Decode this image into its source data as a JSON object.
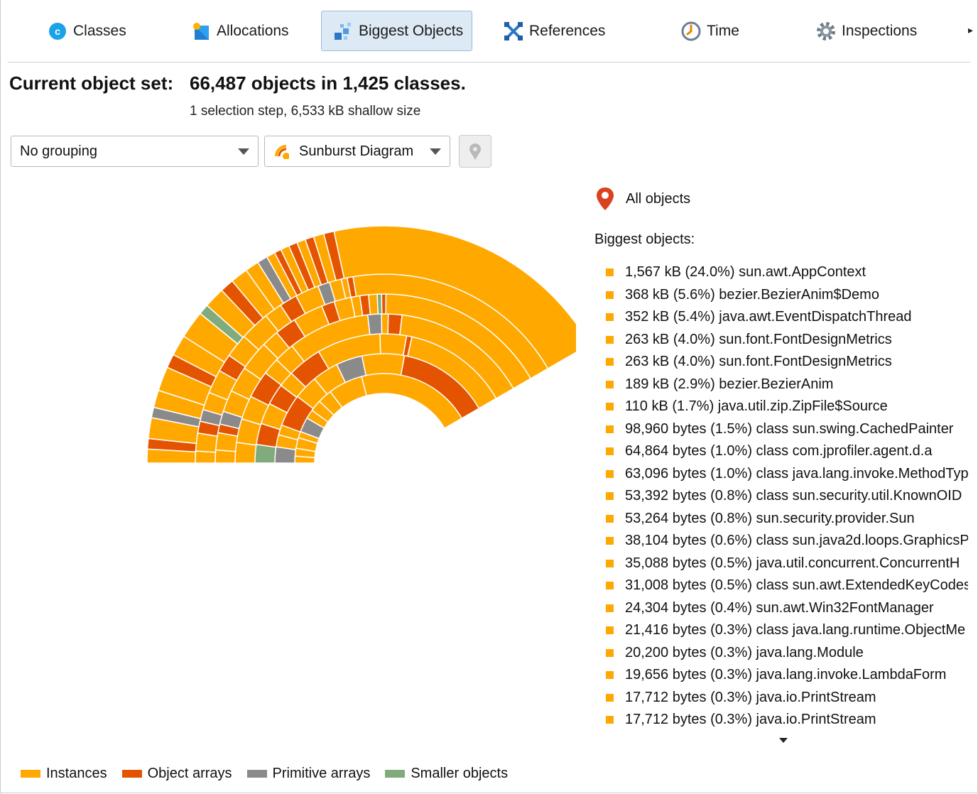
{
  "tabs": [
    {
      "label": "Classes",
      "icon": "classes-icon"
    },
    {
      "label": "Allocations",
      "icon": "allocations-icon"
    },
    {
      "label": "Biggest Objects",
      "icon": "biggest-objects-icon",
      "active": true
    },
    {
      "label": "References",
      "icon": "references-icon"
    },
    {
      "label": "Time",
      "icon": "time-icon"
    },
    {
      "label": "Inspections",
      "icon": "inspections-icon"
    }
  ],
  "header": {
    "label": "Current object set:",
    "value": "66,487 objects in 1,425 classes.",
    "sub": "1 selection step, 6,533 kB shallow size"
  },
  "controls": {
    "grouping": "No grouping",
    "view": "Sunburst Diagram"
  },
  "panel": {
    "all_objects": "All objects",
    "biggest_title": "Biggest objects:",
    "items": [
      "1,567 kB (24.0%) sun.awt.AppContext",
      "368 kB (5.6%) bezier.BezierAnim$Demo",
      "352 kB (5.4%) java.awt.EventDispatchThread",
      "263 kB (4.0%) sun.font.FontDesignMetrics",
      "263 kB (4.0%) sun.font.FontDesignMetrics",
      "189 kB (2.9%) bezier.BezierAnim",
      "110 kB (1.7%) java.util.zip.ZipFile$Source",
      "98,960 bytes (1.5%) class sun.swing.CachedPainter",
      "64,864 bytes (1.0%) class com.jprofiler.agent.d.a",
      "63,096 bytes (1.0%) class java.lang.invoke.MethodTyp",
      "53,392 bytes (0.8%) class sun.security.util.KnownOID",
      "53,264 bytes (0.8%) sun.security.provider.Sun",
      "38,104 bytes (0.6%) class sun.java2d.loops.GraphicsP",
      "35,088 bytes (0.5%) java.util.concurrent.ConcurrentH",
      "31,008 bytes (0.5%) class sun.awt.ExtendedKeyCodes",
      "24,304 bytes (0.4%) sun.awt.Win32FontManager",
      "21,416 bytes (0.3%) class java.lang.runtime.ObjectMe",
      "20,200 bytes (0.3%) java.lang.Module",
      "19,656 bytes (0.3%) java.lang.invoke.LambdaForm",
      "17,712 bytes (0.3%) java.io.PrintStream",
      "17,712 bytes (0.3%) java.io.PrintStream"
    ]
  },
  "legend": [
    {
      "label": "Instances",
      "color": "#ffa800"
    },
    {
      "label": "Object arrays",
      "color": "#e45400"
    },
    {
      "label": "Primitive arrays",
      "color": "#8a8a8a"
    },
    {
      "label": "Smaller objects",
      "color": "#7fab7d"
    }
  ],
  "colors": {
    "instances": "#ffa800",
    "object_arrays": "#e45400",
    "primitive_arrays": "#8a8a8a",
    "smaller_objects": "#7fab7d",
    "active_tab_bg": "#dde9f5",
    "marker": "#d9431e"
  },
  "sunburst": {
    "rings": [
      [
        [
          "i",
          100.0
        ]
      ],
      [
        [
          "i",
          1.5
        ],
        [
          "i",
          1.7
        ],
        [
          "i",
          2.3
        ],
        [
          "i",
          1.4
        ],
        [
          "p",
          3.2
        ],
        [
          "i",
          2.0
        ],
        [
          "i",
          2.5
        ],
        [
          "i",
          3.1
        ],
        [
          "i",
          7.5
        ],
        [
          "i",
          25.0
        ]
      ],
      [
        [
          "p",
          4.0
        ],
        [
          "i",
          3.0
        ],
        [
          "i",
          2.5
        ],
        [
          "o",
          8.0
        ],
        [
          "i",
          6.0
        ],
        [
          "i",
          6.5
        ],
        [
          "p",
          6.5
        ],
        [
          "i",
          10.5
        ],
        [
          "o",
          23.0
        ]
      ],
      [
        [
          "g",
          3.5
        ],
        [
          "o",
          4.0
        ],
        [
          "i",
          4.0
        ],
        [
          "o",
          4.0
        ],
        [
          "i",
          3.0
        ],
        [
          "o",
          6.5
        ],
        [
          "i",
          12.0
        ],
        [
          "i",
          5.0
        ],
        [
          "o",
          1.0
        ],
        [
          "i",
          20.0
        ]
      ],
      [
        [
          "i",
          3.0
        ],
        [
          "i",
          3.5
        ],
        [
          "i",
          3.5
        ],
        [
          "o",
          4.0
        ],
        [
          "i",
          2.5
        ],
        [
          "i",
          3.0
        ],
        [
          "i",
          12.0
        ],
        [
          "p",
          2.0
        ],
        [
          "i",
          1.0
        ],
        [
          "o",
          2.0
        ],
        [
          "i",
          20.0
        ]
      ],
      [
        [
          "i",
          1.5
        ],
        [
          "i",
          2.0
        ],
        [
          "o",
          1.0
        ],
        [
          "p",
          1.5
        ],
        [
          "i",
          2.5
        ],
        [
          "i",
          3.0
        ],
        [
          "i",
          3.5
        ],
        [
          "i",
          2.0
        ],
        [
          "o",
          2.5
        ],
        [
          "i",
          3.5
        ],
        [
          "o",
          1.5
        ],
        [
          "i",
          2.0
        ],
        [
          "i",
          1.0
        ],
        [
          "o",
          1.0
        ],
        [
          "i",
          1.0
        ],
        [
          "g",
          0.5
        ],
        [
          "o",
          0.5
        ],
        [
          "i",
          20.0
        ]
      ],
      [
        [
          "i",
          1.0
        ],
        [
          "i",
          1.5
        ],
        [
          "o",
          1.0
        ],
        [
          "p",
          1.0
        ],
        [
          "i",
          1.5
        ],
        [
          "i",
          2.0
        ],
        [
          "o",
          1.5
        ],
        [
          "i",
          2.0
        ],
        [
          "i",
          2.5
        ],
        [
          "i",
          1.5
        ],
        [
          "o",
          1.5
        ],
        [
          "i",
          2.0
        ],
        [
          "p",
          1.0
        ],
        [
          "i",
          1.0
        ],
        [
          "i",
          0.5
        ],
        [
          "o",
          0.5
        ],
        [
          "i",
          19.0
        ]
      ],
      [
        [
          "i",
          0.8
        ],
        [
          "o",
          0.6
        ],
        [
          "i",
          1.2
        ],
        [
          "p",
          0.6
        ],
        [
          "i",
          1.0
        ],
        [
          "i",
          1.4
        ],
        [
          "o",
          0.8
        ],
        [
          "i",
          1.2
        ],
        [
          "i",
          1.6
        ],
        [
          "g",
          0.6
        ],
        [
          "i",
          1.2
        ],
        [
          "o",
          0.8
        ],
        [
          "i",
          1.0
        ],
        [
          "i",
          0.8
        ],
        [
          "p",
          0.6
        ],
        [
          "i",
          0.5
        ],
        [
          "o",
          0.4
        ],
        [
          "i",
          0.5
        ],
        [
          "o",
          0.5
        ],
        [
          "i",
          0.5
        ],
        [
          "o",
          0.5
        ],
        [
          "i",
          0.6
        ],
        [
          "o",
          0.6
        ],
        [
          "i",
          17.0
        ]
      ]
    ]
  }
}
